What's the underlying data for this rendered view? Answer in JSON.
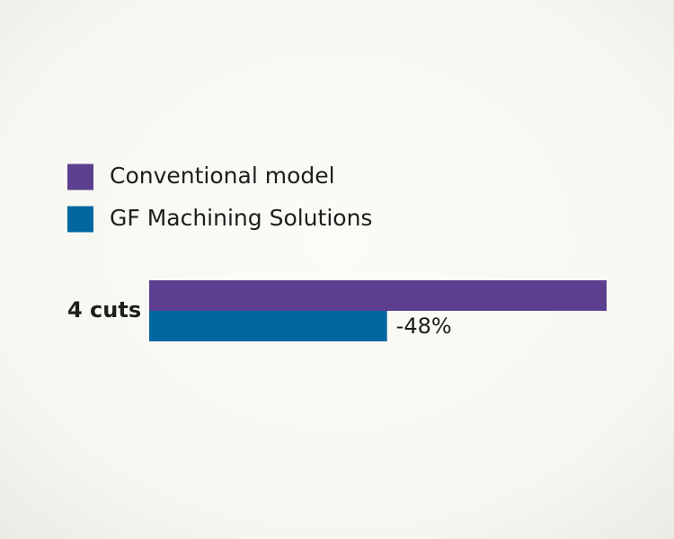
{
  "chart_data": {
    "type": "bar",
    "orientation": "horizontal",
    "categories": [
      "4 cuts"
    ],
    "series": [
      {
        "name": "Conventional model",
        "color": "#5c3f8e",
        "values": [
          100
        ]
      },
      {
        "name": "GF Machining Solutions",
        "color": "#0067a0",
        "values": [
          52
        ]
      }
    ],
    "annotation": "-48%",
    "xlim": [
      0,
      100
    ],
    "legend": "top-left"
  }
}
